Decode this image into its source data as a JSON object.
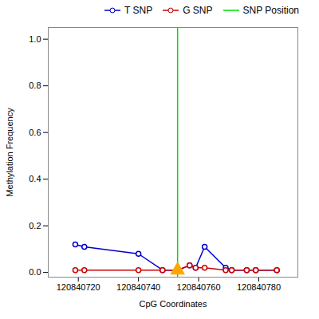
{
  "chart_data": {
    "type": "line",
    "xlabel": "CpG Coordinates",
    "ylabel": "Methylation Frequency",
    "x": [
      120840719,
      120840722,
      120840740,
      120840748,
      120840753,
      120840757,
      120840759,
      120840762,
      120840769,
      120840771,
      120840776,
      120840779,
      120840786
    ],
    "series": [
      {
        "name": "T SNP",
        "color": "#0000CC",
        "marker": "circle",
        "values": [
          0.12,
          0.11,
          0.08,
          0.01,
          0.01,
          0.03,
          0.02,
          0.11,
          0.02,
          0.01,
          0.01,
          0.01,
          0.01
        ]
      },
      {
        "name": "G SNP",
        "color": "#CC0000",
        "marker": "circle",
        "values": [
          0.01,
          0.01,
          0.01,
          0.01,
          0.01,
          0.03,
          0.02,
          0.02,
          0.01,
          0.01,
          0.01,
          0.01,
          0.01
        ]
      }
    ],
    "snp_line": {
      "name": "SNP Position",
      "x": 120840753,
      "color": "#00DD00"
    },
    "snp_marker": {
      "x": 120840753,
      "y": 0.01,
      "color": "#FFA500",
      "marker": "triangle"
    },
    "xlim": [
      120840710,
      120840793
    ],
    "ylim": [
      -0.02,
      1.05
    ],
    "xticks": [
      120840720,
      120840740,
      120840760,
      120840780
    ],
    "yticks": [
      {
        "value": 0.0,
        "label": "0.0"
      },
      0.2,
      0.4,
      0.6,
      0.8,
      {
        "value": 1.0,
        "label": "1.0"
      }
    ],
    "grid": false,
    "legend": "upper right"
  }
}
